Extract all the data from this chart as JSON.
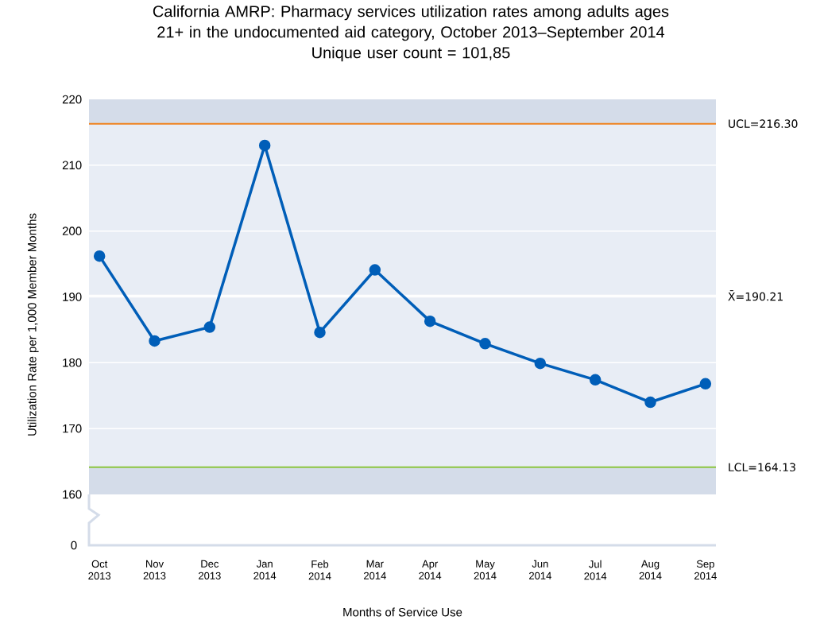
{
  "chart_data": {
    "type": "line",
    "title": "California AMRP: Pharmacy services utilization rates among adults ages 21+ in the undocumented aid category, October 2013–September 2014",
    "subtitle": "Unique user count = 101,85",
    "xlabel": "Months of Service Use",
    "ylabel": "Utilization Rate per 1,000 Member Months",
    "categories": [
      "Oct 2013",
      "Nov 2013",
      "Dec 2013",
      "Jan 2014",
      "Feb 2014",
      "Mar 2014",
      "Apr 2014",
      "May 2014",
      "Jun 2014",
      "Jul 2014",
      "Aug 2014",
      "Sep 2014"
    ],
    "series": [
      {
        "color": "#005eb8",
        "values": [
          196.2,
          183.3,
          185.4,
          213.0,
          184.6,
          194.1,
          186.3,
          182.9,
          179.9,
          177.4,
          174.0,
          176.8
        ]
      }
    ],
    "ylim": [
      160,
      220
    ],
    "yticks": [
      160,
      170,
      180,
      190,
      200,
      210,
      220
    ],
    "grid": "y",
    "marker": "circle",
    "line_style": "solid",
    "ref_lines": [
      {
        "axis": "y",
        "value": 216.3,
        "label": "UCL=216.30",
        "color": "#f0821e"
      },
      {
        "axis": "y",
        "value": 190.21,
        "label": "X̄=190.21",
        "color": "#ffffff"
      },
      {
        "axis": "y",
        "value": 164.13,
        "label": "LCL=164.13",
        "color": "#8cc63f"
      }
    ],
    "bands": [
      {
        "axis": "y",
        "from": 216.3,
        "to": 220,
        "color": "#d4dce9"
      },
      {
        "axis": "y",
        "from": 160,
        "to": 164.13,
        "color": "#d4dce9"
      }
    ],
    "annotations": [
      "0"
    ]
  }
}
